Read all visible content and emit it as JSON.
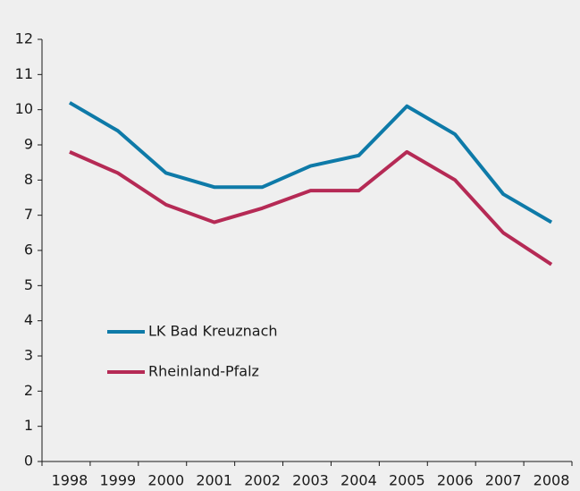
{
  "chart_data": {
    "type": "line",
    "categories": [
      "1998",
      "1999",
      "2000",
      "2001",
      "2002",
      "2003",
      "2004",
      "2005",
      "2006",
      "2007",
      "2008"
    ],
    "series": [
      {
        "name": "LK Bad Kreuznach",
        "color": "#0e7aa8",
        "values": [
          10.2,
          9.4,
          8.2,
          7.8,
          7.8,
          8.4,
          8.7,
          10.1,
          9.3,
          7.6,
          6.8
        ]
      },
      {
        "name": "Rheinland-Pfalz",
        "color": "#b52a55",
        "values": [
          8.8,
          8.2,
          7.3,
          6.8,
          7.2,
          7.7,
          7.7,
          8.8,
          8.0,
          6.5,
          5.6
        ]
      }
    ],
    "ylim": [
      0,
      12
    ],
    "yticks": [
      0,
      1,
      2,
      3,
      4,
      5,
      6,
      7,
      8,
      9,
      10,
      11,
      12
    ],
    "grid": false,
    "legend": "left"
  }
}
